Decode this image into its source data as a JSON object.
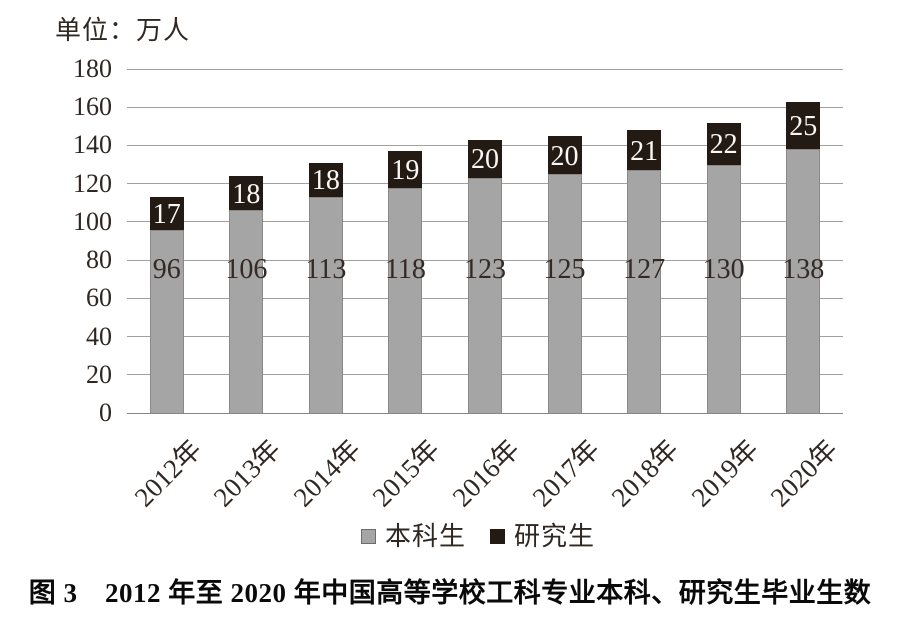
{
  "chart_data": {
    "type": "bar",
    "stacked": true,
    "unit_annotation": "单位：万人",
    "title": "图 3　2012 年至 2020 年中国高等学校工科专业本科、研究生毕业生数",
    "categories": [
      "2012年",
      "2013年",
      "2014年",
      "2015年",
      "2016年",
      "2017年",
      "2018年",
      "2019年",
      "2020年"
    ],
    "series": [
      {
        "name": "本科生",
        "color": "#a5a5a5",
        "label_color": "#332a26",
        "values": [
          96,
          106,
          113,
          118,
          123,
          125,
          127,
          130,
          138
        ]
      },
      {
        "name": "研究生",
        "color": "#241a14",
        "label_color": "#faf7f4",
        "values": [
          17,
          18,
          18,
          19,
          20,
          20,
          21,
          22,
          25
        ]
      }
    ],
    "ylim": [
      0,
      180
    ],
    "yticks": [
      0,
      20,
      40,
      60,
      80,
      100,
      120,
      140,
      160,
      180
    ],
    "grid": true,
    "legend_position": "bottom"
  }
}
